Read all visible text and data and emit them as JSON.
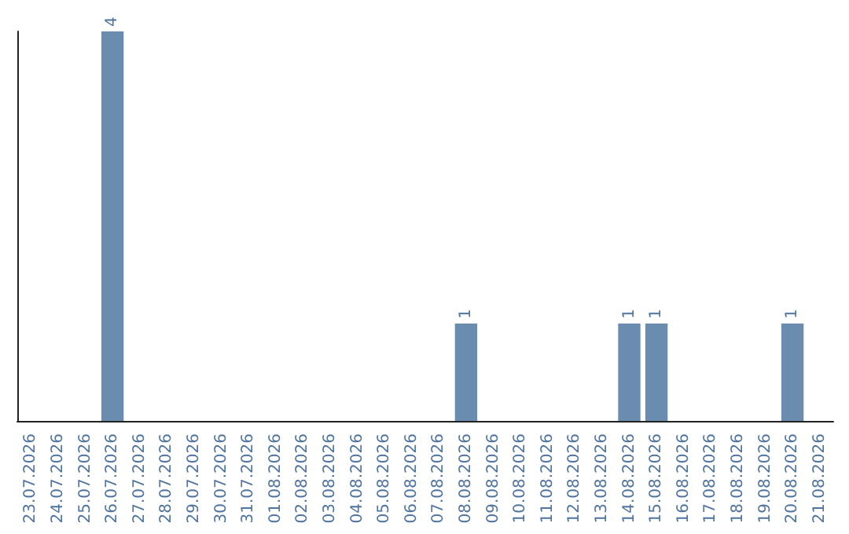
{
  "chart_data": {
    "type": "bar",
    "categories": [
      "23.07.2026",
      "24.07.2026",
      "25.07.2026",
      "26.07.2026",
      "27.07.2026",
      "28.07.2026",
      "29.07.2026",
      "30.07.2026",
      "31.07.2026",
      "01.08.2026",
      "02.08.2026",
      "03.08.2026",
      "04.08.2026",
      "05.08.2026",
      "06.08.2026",
      "07.08.2026",
      "08.08.2026",
      "09.08.2026",
      "10.08.2026",
      "11.08.2026",
      "12.08.2026",
      "13.08.2026",
      "14.08.2026",
      "15.08.2026",
      "16.08.2026",
      "17.08.2026",
      "18.08.2026",
      "19.08.2026",
      "20.08.2026",
      "21.08.2026"
    ],
    "values": [
      0,
      0,
      0,
      4,
      0,
      0,
      0,
      0,
      0,
      0,
      0,
      0,
      0,
      0,
      0,
      0,
      1,
      0,
      0,
      0,
      0,
      0,
      1,
      1,
      0,
      0,
      0,
      0,
      1,
      0
    ],
    "color": "#6a8caf",
    "value_labels": [
      null,
      null,
      null,
      "4",
      null,
      null,
      null,
      null,
      null,
      null,
      null,
      null,
      null,
      null,
      null,
      null,
      "1",
      null,
      null,
      null,
      null,
      null,
      "1",
      "1",
      null,
      null,
      null,
      null,
      "1",
      null
    ]
  }
}
